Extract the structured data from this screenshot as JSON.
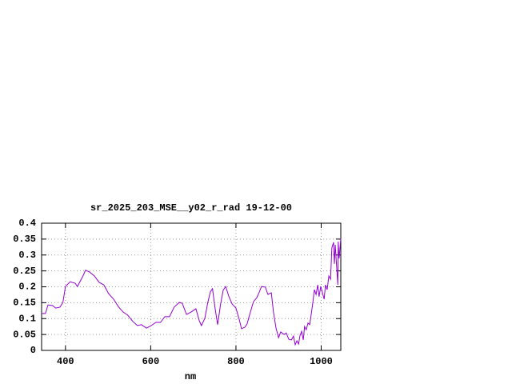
{
  "chart_data": {
    "type": "line",
    "title": "sr_2025_203_MSE__y02_r_rad 19-12-00",
    "x_label": "nm",
    "xlim": [
      344,
      1046
    ],
    "ylim": [
      0,
      0.4
    ],
    "xticks": [
      400,
      600,
      800,
      1000
    ],
    "yticks": [
      0,
      0.05,
      0.1,
      0.15,
      0.2,
      0.25,
      0.3,
      0.35,
      0.4
    ],
    "grid": true,
    "series": [
      {
        "color": "#9400d3",
        "x": [
          344,
          353,
          359,
          370,
          377,
          387,
          394,
          400,
          411,
          423,
          428,
          441,
          447,
          456,
          468,
          479,
          490,
          501,
          513,
          524,
          535,
          546,
          558,
          569,
          578,
          590,
          601,
          612,
          623,
          633,
          644,
          655,
          667,
          674,
          684,
          695,
          706,
          714,
          719,
          727,
          734,
          740,
          745,
          751,
          757,
          764,
          770,
          776,
          783,
          791,
          800,
          808,
          813,
          821,
          826,
          834,
          841,
          849,
          854,
          860,
          869,
          875,
          883,
          888,
          894,
          900,
          905,
          913,
          918,
          924,
          930,
          935,
          939,
          943,
          947,
          950,
          954,
          958,
          961,
          965,
          969,
          973,
          976,
          980,
          984,
          988,
          992,
          995,
          999,
          1003,
          1007,
          1010,
          1014,
          1018,
          1022,
          1025,
          1029,
          1031,
          1033,
          1035,
          1039,
          1040,
          1042,
          1046
        ],
        "values": [
          0.116,
          0.116,
          0.143,
          0.141,
          0.133,
          0.136,
          0.151,
          0.201,
          0.216,
          0.211,
          0.201,
          0.234,
          0.252,
          0.247,
          0.234,
          0.214,
          0.206,
          0.179,
          0.161,
          0.138,
          0.121,
          0.111,
          0.091,
          0.078,
          0.081,
          0.07,
          0.078,
          0.088,
          0.088,
          0.106,
          0.106,
          0.136,
          0.151,
          0.148,
          0.113,
          0.121,
          0.131,
          0.093,
          0.078,
          0.101,
          0.151,
          0.184,
          0.194,
          0.133,
          0.081,
          0.146,
          0.189,
          0.201,
          0.171,
          0.146,
          0.133,
          0.096,
          0.068,
          0.073,
          0.083,
          0.121,
          0.153,
          0.166,
          0.181,
          0.201,
          0.199,
          0.176,
          0.181,
          0.121,
          0.07,
          0.04,
          0.058,
          0.05,
          0.055,
          0.035,
          0.033,
          0.045,
          0.018,
          0.03,
          0.02,
          0.045,
          0.06,
          0.033,
          0.075,
          0.065,
          0.086,
          0.081,
          0.108,
          0.146,
          0.191,
          0.176,
          0.206,
          0.169,
          0.201,
          0.181,
          0.161,
          0.206,
          0.191,
          0.234,
          0.224,
          0.322,
          0.34,
          0.272,
          0.332,
          0.289,
          0.206,
          0.342,
          0.289,
          0.352
        ]
      }
    ]
  }
}
